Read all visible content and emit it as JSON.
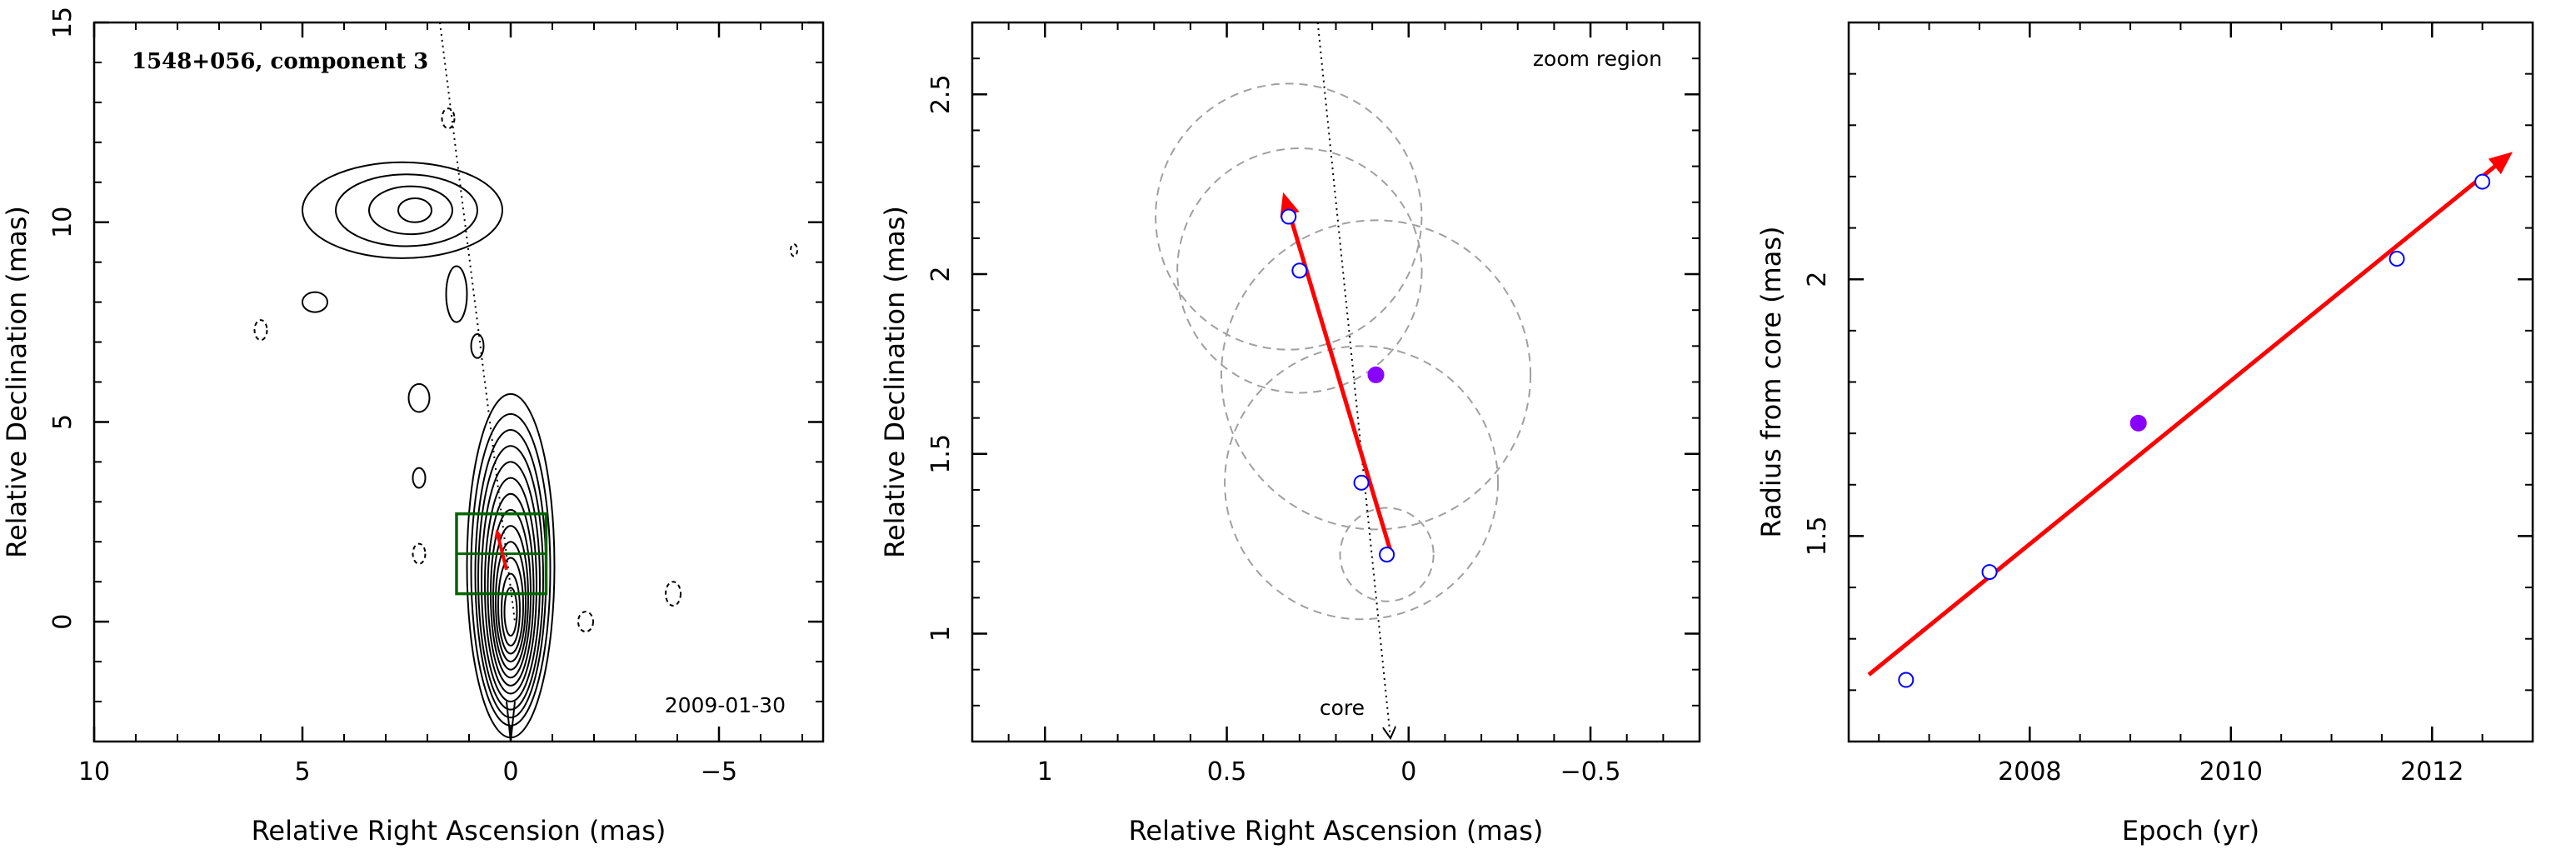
{
  "colors": {
    "axis": "#000000",
    "contour": "#000000",
    "velocity_arrow": "#ff0000",
    "component_open": "#0000ff",
    "component_filled": "#8a00ff",
    "zoom_box": "#006400",
    "error_circle": "#a0a0a0"
  },
  "chart_data": [
    {
      "type": "contour",
      "xlabel": "Relative Right Ascension (mas)",
      "ylabel": "Relative Declination (mas)",
      "xlim": [
        10,
        -7.5
      ],
      "ylim": [
        -3,
        15
      ],
      "xticks": [
        10,
        5,
        0,
        -5
      ],
      "yticks": [
        0,
        5,
        10,
        15
      ],
      "xtick_labels": [
        "10",
        "5",
        "0",
        "−5"
      ],
      "ytick_labels": [
        "0",
        "5",
        "10",
        "15"
      ],
      "annotations": {
        "source_label": "1548+056, component 3",
        "epoch_label": "2009-01-30"
      },
      "ridge_line": {
        "x": [
          1.7,
          -0.1
        ],
        "y": [
          15,
          0
        ]
      },
      "zoom_box": {
        "x": [
          1.3,
          -0.85
        ],
        "y": [
          0.7,
          2.7
        ],
        "grid_lines_y": [
          1.7
        ]
      },
      "velocity_arrow": {
        "from": [
          0.1,
          1.3
        ],
        "to": [
          0.33,
          2.25
        ]
      },
      "core_contours": [
        {
          "cx": 0.0,
          "cy": 1.4,
          "rx": 1.05,
          "ry": 4.3
        },
        {
          "cx": 0.0,
          "cy": 1.3,
          "rx": 0.95,
          "ry": 3.9
        },
        {
          "cx": 0.0,
          "cy": 1.2,
          "rx": 0.85,
          "ry": 3.6
        },
        {
          "cx": 0.0,
          "cy": 1.1,
          "rx": 0.78,
          "ry": 3.3
        },
        {
          "cx": 0.0,
          "cy": 1.0,
          "rx": 0.7,
          "ry": 3.0
        },
        {
          "cx": 0.0,
          "cy": 0.9,
          "rx": 0.62,
          "ry": 2.7
        },
        {
          "cx": 0.0,
          "cy": 0.8,
          "rx": 0.55,
          "ry": 2.4
        },
        {
          "cx": 0.0,
          "cy": 0.7,
          "rx": 0.48,
          "ry": 2.1
        },
        {
          "cx": 0.0,
          "cy": 0.6,
          "rx": 0.42,
          "ry": 1.8
        },
        {
          "cx": 0.0,
          "cy": 0.5,
          "rx": 0.36,
          "ry": 1.5
        },
        {
          "cx": 0.0,
          "cy": 0.4,
          "rx": 0.3,
          "ry": 1.2
        },
        {
          "cx": 0.0,
          "cy": 0.3,
          "rx": 0.22,
          "ry": 0.9
        },
        {
          "cx": 0.0,
          "cy": 0.25,
          "rx": 0.15,
          "ry": 0.6
        }
      ],
      "blob_contours": [
        {
          "cx": 2.6,
          "cy": 10.3,
          "rx": 2.4,
          "ry": 1.2
        },
        {
          "cx": 2.5,
          "cy": 10.3,
          "rx": 1.7,
          "ry": 0.9
        },
        {
          "cx": 2.4,
          "cy": 10.3,
          "rx": 1.0,
          "ry": 0.6
        },
        {
          "cx": 2.3,
          "cy": 10.3,
          "rx": 0.4,
          "ry": 0.3
        },
        {
          "cx": 1.3,
          "cy": 8.2,
          "rx": 0.25,
          "ry": 0.7
        },
        {
          "cx": 0.8,
          "cy": 6.9,
          "rx": 0.15,
          "ry": 0.3
        },
        {
          "cx": 4.7,
          "cy": 8.0,
          "rx": 0.3,
          "ry": 0.25
        },
        {
          "cx": 2.2,
          "cy": 5.6,
          "rx": 0.25,
          "ry": 0.35
        },
        {
          "cx": 2.2,
          "cy": 3.6,
          "rx": 0.15,
          "ry": 0.25
        }
      ],
      "negative_contours": [
        {
          "cx": 1.5,
          "cy": 12.6,
          "rx": 0.15,
          "ry": 0.25
        },
        {
          "cx": 6.0,
          "cy": 7.3,
          "rx": 0.15,
          "ry": 0.25
        },
        {
          "cx": 2.2,
          "cy": 1.7,
          "rx": 0.15,
          "ry": 0.25
        },
        {
          "cx": -1.8,
          "cy": 0.0,
          "rx": 0.18,
          "ry": 0.25
        },
        {
          "cx": -3.9,
          "cy": 0.7,
          "rx": 0.18,
          "ry": 0.3
        },
        {
          "cx": -6.8,
          "cy": 9.3,
          "rx": 0.08,
          "ry": 0.15
        }
      ]
    },
    {
      "type": "scatter",
      "xlabel": "Relative Right Ascension (mas)",
      "ylabel": "Relative Declination (mas)",
      "xlim": [
        1.2,
        -0.8
      ],
      "ylim": [
        0.7,
        2.7
      ],
      "xticks": [
        1,
        0.5,
        0,
        -0.5
      ],
      "yticks": [
        1,
        1.5,
        2,
        2.5
      ],
      "xtick_labels": [
        "1",
        "0.5",
        "0",
        "−0.5"
      ],
      "ytick_labels": [
        "1",
        "1.5",
        "2",
        "2.5"
      ],
      "annotations": {
        "zoom_label": "zoom region",
        "core_label": "core"
      },
      "ridge_line": {
        "x": [
          0.25,
          0.05
        ],
        "y": [
          2.7,
          0.7
        ]
      },
      "open_points": [
        {
          "x": 0.33,
          "y": 2.16
        },
        {
          "x": 0.3,
          "y": 2.01
        },
        {
          "x": 0.13,
          "y": 1.42
        },
        {
          "x": 0.06,
          "y": 1.22
        }
      ],
      "filled_points": [
        {
          "x": 0.09,
          "y": 1.72
        }
      ],
      "error_circles": [
        {
          "x": 0.33,
          "y": 2.16,
          "r": 0.37
        },
        {
          "x": 0.3,
          "y": 2.01,
          "r": 0.34
        },
        {
          "x": 0.09,
          "y": 1.72,
          "r": 0.43
        },
        {
          "x": 0.13,
          "y": 1.42,
          "r": 0.38
        },
        {
          "x": 0.06,
          "y": 1.22,
          "r": 0.13
        }
      ],
      "velocity_arrow": {
        "from": [
          0.05,
          1.23
        ],
        "to": [
          0.34,
          2.21
        ]
      }
    },
    {
      "type": "scatter",
      "xlabel": "Epoch (yr)",
      "ylabel": "Radius from core (mas)",
      "xlim": [
        2006.2,
        2013.0
      ],
      "ylim": [
        1.1,
        2.5
      ],
      "xticks": [
        2008,
        2010,
        2012
      ],
      "yticks": [
        1.5,
        2
      ],
      "xtick_labels": [
        "2008",
        "2010",
        "2012"
      ],
      "ytick_labels": [
        "1.5",
        "2"
      ],
      "open_points": [
        {
          "x": 2006.77,
          "y": 1.22
        },
        {
          "x": 2007.6,
          "y": 1.43
        },
        {
          "x": 2011.65,
          "y": 2.04
        },
        {
          "x": 2012.5,
          "y": 2.19
        }
      ],
      "filled_points": [
        {
          "x": 2009.08,
          "y": 1.72
        }
      ],
      "fit_arrow": {
        "from": [
          2006.4,
          1.23
        ],
        "to": [
          2012.75,
          2.24
        ]
      }
    }
  ]
}
